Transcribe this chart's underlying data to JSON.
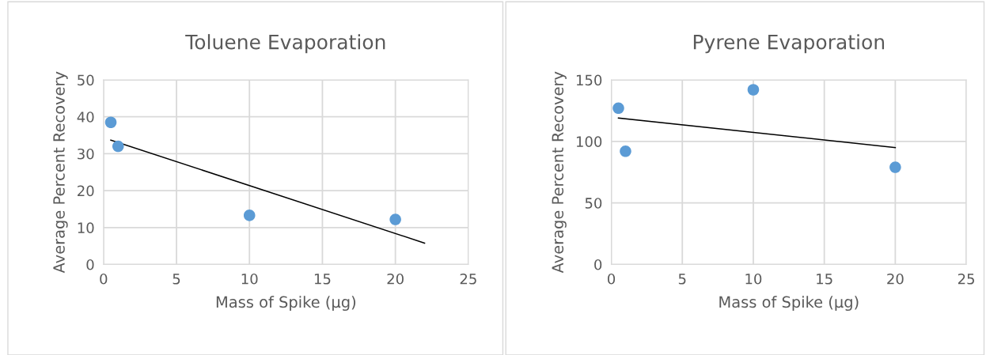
{
  "chart_data": [
    {
      "type": "scatter",
      "title": "Toluene Evaporation",
      "xlabel": "Mass of Spike (µg)",
      "ylabel": "Average Percent Recovery",
      "xlim": [
        0,
        25
      ],
      "xticks": [
        0,
        5,
        10,
        15,
        20,
        25
      ],
      "ylim": [
        0,
        50
      ],
      "yticks": [
        0,
        10,
        20,
        30,
        40,
        50
      ],
      "grid": true,
      "series": [
        {
          "color": "#5b9bd5",
          "marker": "circle",
          "x": [
            0.5,
            1,
            10,
            20
          ],
          "values": [
            38.5,
            32,
            13.3,
            12.2
          ]
        },
        {
          "type": "line",
          "color": "#000000",
          "x": [
            0.5,
            22
          ],
          "values": [
            33.7,
            5.8
          ]
        }
      ]
    },
    {
      "type": "scatter",
      "title": "Pyrene Evaporation",
      "xlabel": "Mass of Spike (µg)",
      "ylabel": "Average Percent Recovery",
      "xlim": [
        0,
        25
      ],
      "xticks": [
        0,
        5,
        10,
        15,
        20,
        25
      ],
      "ylim": [
        0,
        150
      ],
      "yticks": [
        0,
        50,
        100,
        150
      ],
      "grid": true,
      "series": [
        {
          "color": "#5b9bd5",
          "marker": "circle",
          "x": [
            0.5,
            1,
            10,
            20
          ],
          "values": [
            127,
            92,
            142,
            79
          ]
        },
        {
          "type": "line",
          "color": "#000000",
          "x": [
            0.5,
            20
          ],
          "values": [
            119,
            95
          ]
        }
      ]
    }
  ]
}
